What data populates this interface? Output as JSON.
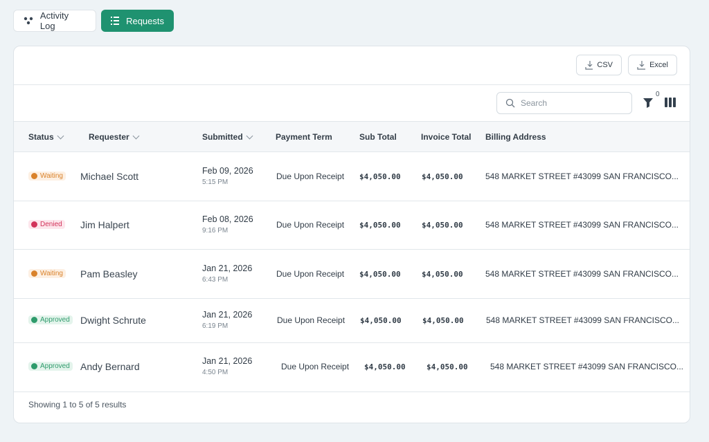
{
  "tabs": [
    "Activity Log",
    "Requests"
  ],
  "exports": [
    "CSV",
    "Excel"
  ],
  "search_placeholder": "Search",
  "filter_count": "0",
  "table": {
    "headers": [
      "Status",
      "Requester",
      "Submitted",
      "Payment Term",
      "Sub Total",
      "Invoice Total",
      "Billing Address"
    ],
    "rows": [
      {
        "status": {
          "label": "Waiting",
          "color": "#d9822b",
          "bg": "#fdf0e3"
        },
        "requester": "Michael Scott",
        "date": "Feb 09, 2026",
        "time": "5:15 PM",
        "payment_term": "Due Upon Receipt",
        "sub_total": "$4,050.00",
        "invoice_total": "$4,050.00",
        "billing_address": "548 MARKET STREET #43099 SAN FRANCISCO..."
      },
      {
        "status": {
          "label": "Denied",
          "color": "#d2335a",
          "bg": "#fde6ec"
        },
        "requester": "Jim Halpert",
        "date": "Feb 08, 2026",
        "time": "9:16 PM",
        "payment_term": "Due Upon Receipt",
        "sub_total": "$4,050.00",
        "invoice_total": "$4,050.00",
        "billing_address": "548 MARKET STREET #43099 SAN FRANCISCO..."
      },
      {
        "status": {
          "label": "Waiting",
          "color": "#d9822b",
          "bg": "#fdf0e3"
        },
        "requester": "Pam Beasley",
        "date": "Jan 21, 2026",
        "time": "6:43 PM",
        "payment_term": "Due Upon Receipt",
        "sub_total": "$4,050.00",
        "invoice_total": "$4,050.00",
        "billing_address": "548 MARKET STREET #43099 SAN FRANCISCO..."
      },
      {
        "status": {
          "label": "Approved",
          "color": "#2e9b6b",
          "bg": "#e4f4ec"
        },
        "requester": "Dwight Schrute",
        "date": "Jan 21, 2026",
        "time": "6:19 PM",
        "payment_term": "Due Upon Receipt",
        "sub_total": "$4,050.00",
        "invoice_total": "$4,050.00",
        "billing_address": "548 MARKET STREET #43099 SAN FRANCISCO..."
      },
      {
        "status": {
          "label": "Approved",
          "color": "#2e9b6b",
          "bg": "#e4f4ec"
        },
        "requester": "Andy Bernard",
        "date": "Jan 21, 2026",
        "time": "4:50 PM",
        "payment_term": "Due Upon Receipt",
        "sub_total": "$4,050.00",
        "invoice_total": "$4,050.00",
        "billing_address": "548 MARKET STREET #43099 SAN FRANCISCO..."
      }
    ]
  },
  "footer": "Showing 1 to 5 of 5 results"
}
